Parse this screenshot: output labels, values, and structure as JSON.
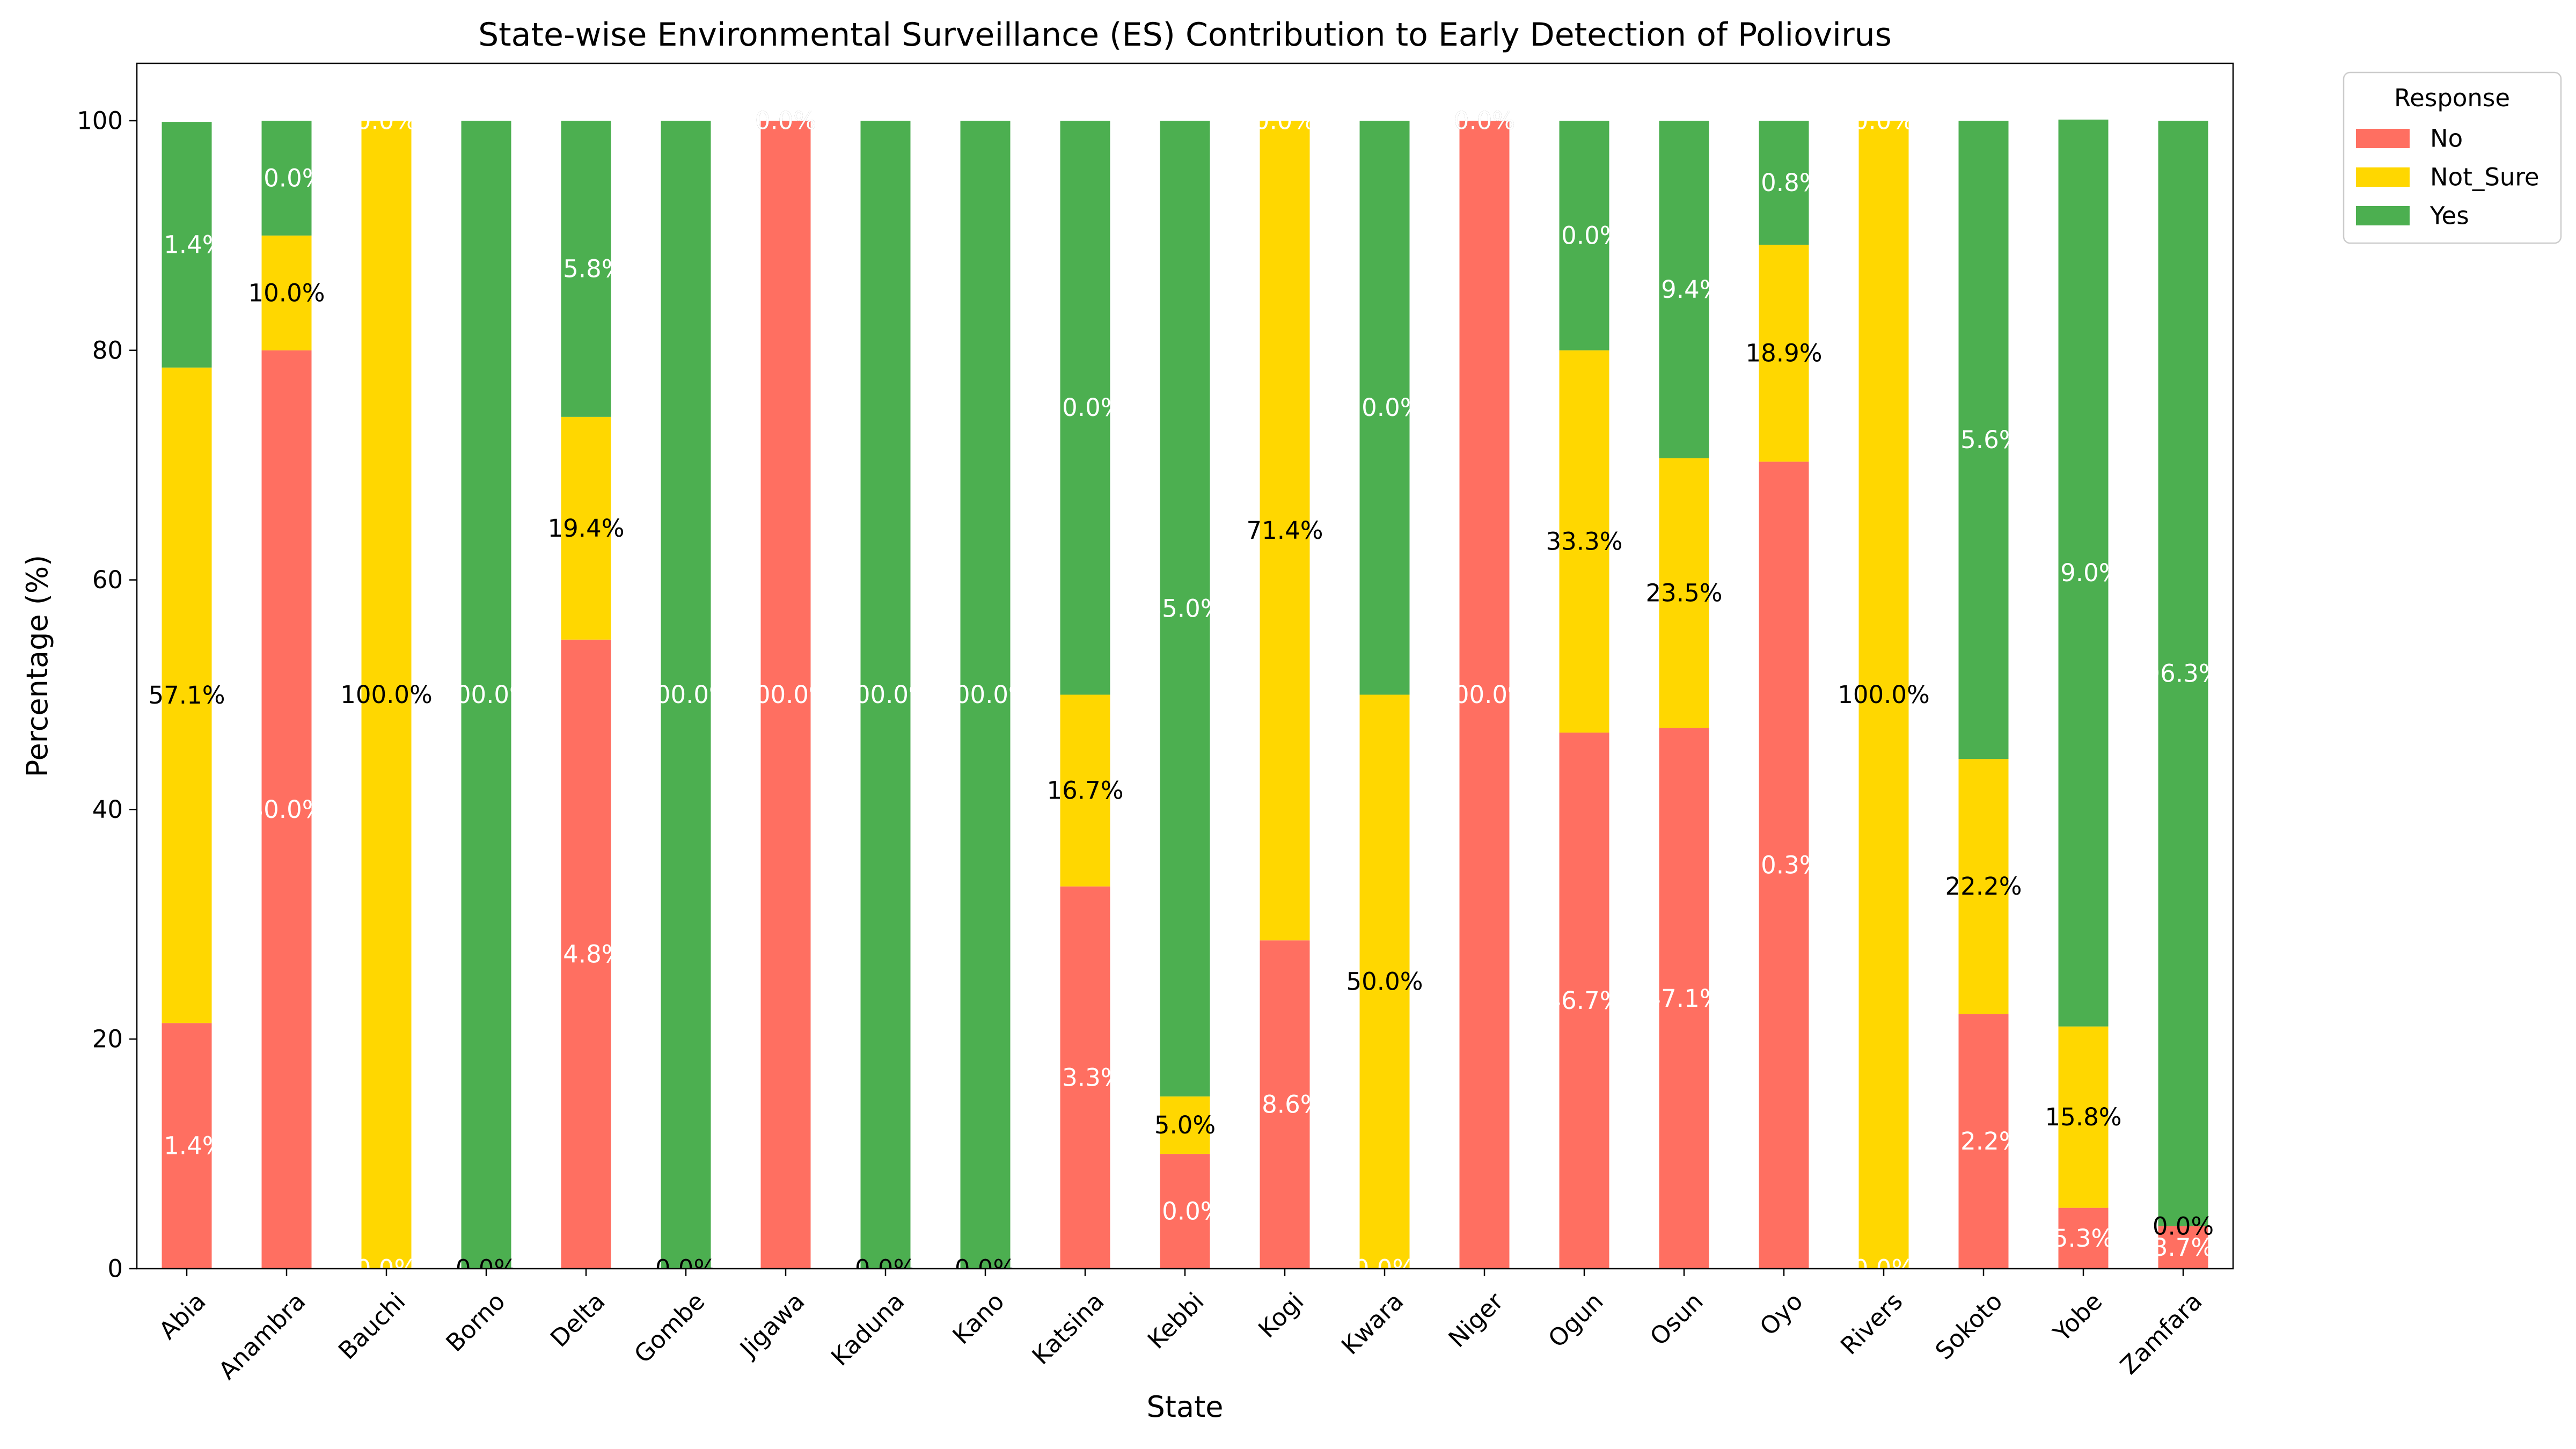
{
  "chart_data": {
    "type": "bar",
    "stacked": true,
    "title": "State-wise Environmental Surveillance (ES) Contribution to Early Detection of Poliovirus",
    "xlabel": "State",
    "ylabel": "Percentage (%)",
    "ylim": [
      0,
      105
    ],
    "yticks": [
      0,
      20,
      40,
      60,
      80,
      100
    ],
    "grid": false,
    "legend": {
      "title": "Response",
      "placement": "outside-top-right"
    },
    "categories": [
      "Abia",
      "Anambra",
      "Bauchi",
      "Borno",
      "Delta",
      "Gombe",
      "Jigawa",
      "Kaduna",
      "Kano",
      "Katsina",
      "Kebbi",
      "Kogi",
      "Kwara",
      "Niger",
      "Ogun",
      "Osun",
      "Oyo",
      "Rivers",
      "Sokoto",
      "Yobe",
      "Zamfara"
    ],
    "series": [
      {
        "name": "No",
        "color": "#ff6f61",
        "label_color": "#ffffff",
        "values": [
          21.4,
          80.0,
          0.0,
          0.0,
          54.8,
          0.0,
          100.0,
          0.0,
          0.0,
          33.3,
          10.0,
          28.6,
          0.0,
          100.0,
          46.7,
          47.1,
          70.3,
          0.0,
          22.2,
          5.3,
          3.7
        ]
      },
      {
        "name": "Not_Sure",
        "color": "#ffd700",
        "label_color": "#000000",
        "values": [
          57.1,
          10.0,
          100.0,
          0.0,
          19.4,
          0.0,
          0.0,
          0.0,
          0.0,
          16.7,
          5.0,
          71.4,
          50.0,
          0.0,
          33.3,
          23.5,
          18.9,
          100.0,
          22.2,
          15.8,
          0.0
        ]
      },
      {
        "name": "Yes",
        "color": "#4caf50",
        "label_color": "#ffffff",
        "values": [
          21.4,
          10.0,
          0.0,
          100.0,
          25.8,
          100.0,
          0.0,
          100.0,
          100.0,
          50.0,
          85.0,
          0.0,
          50.0,
          0.0,
          20.0,
          29.4,
          10.8,
          0.0,
          55.6,
          79.0,
          96.3
        ]
      }
    ]
  }
}
